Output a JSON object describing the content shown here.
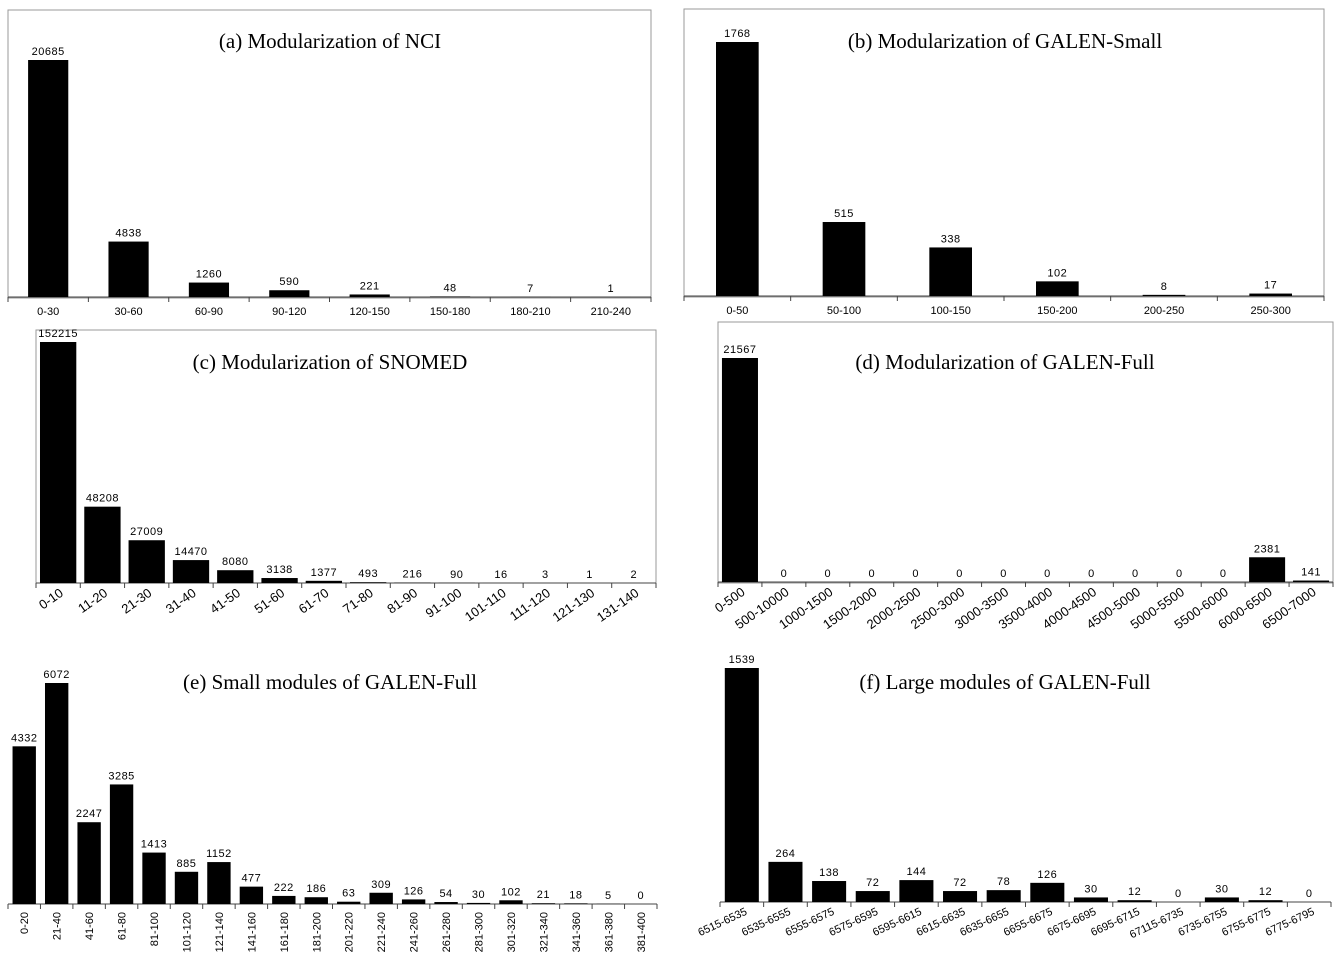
{
  "chart_data": [
    {
      "id": "a",
      "type": "bar",
      "title": "(a) Modularization of NCI",
      "categories": [
        "0-30",
        "30-60",
        "60-90",
        "90-120",
        "120-150",
        "150-180",
        "180-210",
        "210-240"
      ],
      "values": [
        20685,
        4838,
        1260,
        590,
        221,
        48,
        7,
        1
      ],
      "value_labels": [
        "20685",
        "4838",
        "1260",
        "590",
        "221",
        "48",
        "7",
        "1"
      ],
      "ylim": [
        0,
        20685
      ],
      "xlabel": "",
      "ylabel": "",
      "grid": false,
      "legend": "none",
      "tick_rotation": 0
    },
    {
      "id": "b",
      "type": "bar",
      "title": "(b) Modularization of GALEN-Small",
      "categories": [
        "0-50",
        "50-100",
        "100-150",
        "150-200",
        "200-250",
        "250-300"
      ],
      "values": [
        1768,
        515,
        338,
        102,
        8,
        17
      ],
      "value_labels": [
        "1768",
        "515",
        "338",
        "102",
        "8",
        "17"
      ],
      "ylim": [
        0,
        1768
      ],
      "xlabel": "",
      "ylabel": "",
      "grid": false,
      "legend": "none",
      "tick_rotation": 0
    },
    {
      "id": "c",
      "type": "bar",
      "title": "(c) Modularization of SNOMED",
      "categories": [
        "0-10",
        "11-20",
        "21-30",
        "31-40",
        "41-50",
        "51-60",
        "61-70",
        "71-80",
        "81-90",
        "91-100",
        "101-110",
        "111-120",
        "121-130",
        "131-140"
      ],
      "values": [
        152215,
        48208,
        27009,
        14470,
        8080,
        3138,
        1377,
        493,
        216,
        90,
        16,
        3,
        1,
        2
      ],
      "value_labels": [
        "152215",
        "48208",
        "27009",
        "14470",
        "8080",
        "3138",
        "1377",
        "493",
        "216",
        "90",
        "16",
        "3",
        "1",
        "2"
      ],
      "ylim": [
        0,
        152215
      ],
      "xlabel": "",
      "ylabel": "",
      "grid": false,
      "legend": "none",
      "tick_rotation": -35
    },
    {
      "id": "d",
      "type": "bar",
      "title": "(d) Modularization of GALEN-Full",
      "categories": [
        "0-500",
        "500-10000",
        "1000-1500",
        "1500-2000",
        "2000-2500",
        "2500-3000",
        "3000-3500",
        "3500-4000",
        "4000-4500",
        "4500-5000",
        "5000-5500",
        "5500-6000",
        "6000-6500",
        "6500-7000"
      ],
      "values": [
        21567,
        0,
        0,
        0,
        0,
        0,
        0,
        0,
        0,
        0,
        0,
        0,
        2381,
        141
      ],
      "value_labels": [
        "21567",
        "0",
        "0",
        "0",
        "0",
        "0",
        "0",
        "0",
        "0",
        "0",
        "0",
        "0",
        "2381",
        "141"
      ],
      "ylim": [
        0,
        21567
      ],
      "xlabel": "",
      "ylabel": "",
      "grid": false,
      "legend": "none",
      "tick_rotation": -35
    },
    {
      "id": "e",
      "type": "bar",
      "title": "(e) Small modules of GALEN-Full",
      "categories": [
        "0-20",
        "21-40",
        "41-60",
        "61-80",
        "81-100",
        "101-120",
        "121-140",
        "141-160",
        "161-180",
        "181-200",
        "201-220",
        "221-240",
        "241-260",
        "261-280",
        "281-300",
        "301-320",
        "321-340",
        "341-360",
        "361-380",
        "381-400"
      ],
      "values": [
        4332,
        6072,
        2247,
        3285,
        1413,
        885,
        1152,
        477,
        222,
        186,
        63,
        309,
        126,
        54,
        30,
        102,
        21,
        18,
        5,
        0
      ],
      "value_labels": [
        "4332",
        "6072",
        "2247",
        "3285",
        "1413",
        "885",
        "1152",
        "477",
        "222",
        "186",
        "63",
        "309",
        "126",
        "54",
        "30",
        "102",
        "21",
        "18",
        "5",
        "0"
      ],
      "ylim": [
        0,
        6072
      ],
      "xlabel": "",
      "ylabel": "",
      "grid": false,
      "legend": "none",
      "tick_rotation": -90
    },
    {
      "id": "f",
      "type": "bar",
      "title": "(f) Large modules of GALEN-Full",
      "categories": [
        "6515-6535",
        "6535-6555",
        "6555-6575",
        "6575-6595",
        "6595-6615",
        "6615-6635",
        "6635-6655",
        "6655-6675",
        "6675-6695",
        "6695-6715",
        "67115-6735",
        "6735-6755",
        "6755-6775",
        "6775-6795"
      ],
      "values": [
        1539,
        264,
        138,
        72,
        144,
        72,
        78,
        126,
        30,
        12,
        0,
        30,
        12,
        0
      ],
      "value_labels": [
        "1539",
        "264",
        "138",
        "72",
        "144",
        "72",
        "78",
        "126",
        "30",
        "12",
        "0",
        "30",
        "12",
        "0"
      ],
      "ylim": [
        0,
        1539
      ],
      "xlabel": "",
      "ylabel": "",
      "grid": false,
      "legend": "none",
      "tick_rotation": -25
    }
  ]
}
